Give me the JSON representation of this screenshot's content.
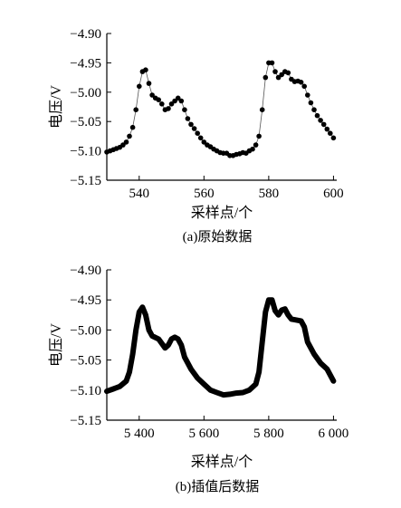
{
  "chart_data": [
    {
      "type": "scatter",
      "caption": "(a)原始数据",
      "xlabel": "采样点/个",
      "ylabel": "电压/V",
      "xlim": [
        530,
        601
      ],
      "ylim": [
        -5.15,
        -4.9
      ],
      "xticks": [
        540,
        560,
        580,
        600
      ],
      "xtick_labels": [
        "540",
        "560",
        "580",
        "600"
      ],
      "yticks": [
        -4.9,
        -4.95,
        -5.0,
        -5.05,
        -5.1,
        -5.15
      ],
      "ytick_labels": [
        "-4.90",
        "-4.95",
        "-5.00",
        "-5.05",
        "-5.10",
        "-5.15"
      ],
      "grid": false,
      "connect_points": true,
      "series": [
        {
          "x": [
            530,
            531,
            532,
            533,
            534,
            535,
            536,
            537,
            538,
            539,
            540,
            541,
            542,
            543,
            544,
            545,
            546,
            547,
            548,
            549,
            550,
            551,
            552,
            553,
            554,
            555,
            556,
            557,
            558,
            559,
            560,
            561,
            562,
            563,
            564,
            565,
            566,
            567,
            568,
            569,
            570,
            571,
            572,
            573,
            574,
            575,
            576,
            577,
            578,
            579,
            580,
            581,
            582,
            583,
            584,
            585,
            586,
            587,
            588,
            589,
            590,
            591,
            592,
            593,
            594,
            595,
            596,
            597,
            598,
            599,
            600
          ],
          "y": [
            -5.102,
            -5.1,
            -5.098,
            -5.096,
            -5.094,
            -5.09,
            -5.085,
            -5.075,
            -5.06,
            -5.03,
            -4.99,
            -4.965,
            -4.962,
            -4.985,
            -5.005,
            -5.01,
            -5.013,
            -5.02,
            -5.03,
            -5.028,
            -5.02,
            -5.015,
            -5.01,
            -5.015,
            -5.03,
            -5.045,
            -5.055,
            -5.062,
            -5.07,
            -5.078,
            -5.085,
            -5.09,
            -5.093,
            -5.097,
            -5.1,
            -5.103,
            -5.104,
            -5.104,
            -5.108,
            -5.108,
            -5.106,
            -5.105,
            -5.103,
            -5.104,
            -5.1,
            -5.097,
            -5.09,
            -5.075,
            -5.03,
            -4.975,
            -4.95,
            -4.95,
            -4.965,
            -4.975,
            -4.97,
            -4.965,
            -4.967,
            -4.978,
            -4.982,
            -4.981,
            -4.983,
            -4.99,
            -5.005,
            -5.018,
            -5.03,
            -5.04,
            -5.048,
            -5.055,
            -5.063,
            -5.07,
            -5.078
          ]
        }
      ]
    },
    {
      "type": "line",
      "caption": "(b)插值后数据",
      "xlabel": "采样点/个",
      "ylabel": "电压/V",
      "xlim": [
        5300,
        6010
      ],
      "ylim": [
        -5.15,
        -4.9
      ],
      "xticks": [
        5400,
        5600,
        5800,
        6000
      ],
      "xtick_labels": [
        "5 400",
        "5 600",
        "5 800",
        "6 000"
      ],
      "yticks": [
        -4.9,
        -4.95,
        -5.0,
        -5.05,
        -5.1,
        -5.15
      ],
      "ytick_labels": [
        "-4.90",
        "-4.95",
        "-5.00",
        "-5.05",
        "-5.10",
        "-5.15"
      ],
      "grid": false,
      "series": [
        {
          "x": [
            5300,
            5320,
            5340,
            5360,
            5370,
            5380,
            5390,
            5400,
            5410,
            5420,
            5430,
            5440,
            5460,
            5480,
            5490,
            5500,
            5510,
            5520,
            5530,
            5540,
            5560,
            5580,
            5600,
            5620,
            5640,
            5660,
            5680,
            5700,
            5720,
            5740,
            5760,
            5770,
            5780,
            5790,
            5800,
            5810,
            5820,
            5830,
            5840,
            5850,
            5860,
            5870,
            5880,
            5900,
            5910,
            5920,
            5940,
            5960,
            5980,
            6000
          ],
          "y": [
            -5.102,
            -5.098,
            -5.094,
            -5.085,
            -5.07,
            -5.04,
            -5.0,
            -4.97,
            -4.962,
            -4.975,
            -5.0,
            -5.01,
            -5.015,
            -5.03,
            -5.025,
            -5.015,
            -5.012,
            -5.015,
            -5.025,
            -5.045,
            -5.065,
            -5.08,
            -5.09,
            -5.1,
            -5.104,
            -5.108,
            -5.107,
            -5.105,
            -5.104,
            -5.1,
            -5.09,
            -5.07,
            -5.02,
            -4.97,
            -4.95,
            -4.95,
            -4.968,
            -4.975,
            -4.967,
            -4.965,
            -4.975,
            -4.982,
            -4.983,
            -4.985,
            -4.995,
            -5.02,
            -5.04,
            -5.055,
            -5.065,
            -5.085
          ]
        }
      ]
    }
  ]
}
